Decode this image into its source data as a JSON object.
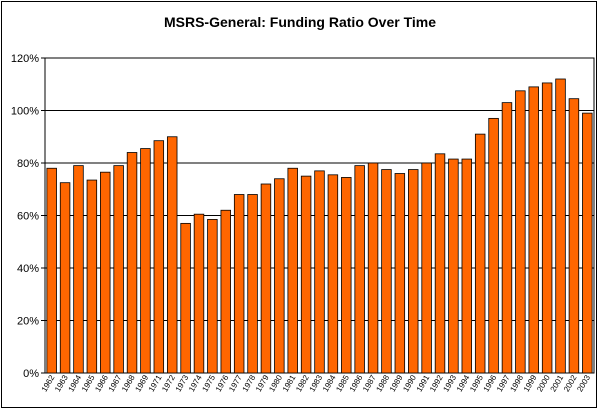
{
  "chart_data": {
    "type": "bar",
    "title": "MSRS-General:  Funding Ratio Over Time",
    "xlabel": "",
    "ylabel": "",
    "ylim": [
      0,
      120
    ],
    "yticks": [
      0,
      20,
      40,
      60,
      80,
      100,
      120
    ],
    "ytick_labels": [
      "0%",
      "20%",
      "40%",
      "60%",
      "80%",
      "100%",
      "120%"
    ],
    "grid": true,
    "legend": "none",
    "bar_color": "#ff6600",
    "bar_edge_color": "#000000",
    "categories": [
      "1962",
      "1963",
      "1964",
      "1965",
      "1966",
      "1967",
      "1968",
      "1969",
      "1971",
      "1972",
      "1973",
      "1974",
      "1975",
      "1976",
      "1977",
      "1978",
      "1979",
      "1980",
      "1981",
      "1982",
      "1983",
      "1984",
      "1985",
      "1986",
      "1987",
      "1988",
      "1989",
      "1990",
      "1991",
      "1992",
      "1993",
      "1994",
      "1995",
      "1996",
      "1997",
      "1998",
      "1999",
      "2000",
      "2001",
      "2002",
      "2003"
    ],
    "values": [
      78,
      72.5,
      79,
      73.5,
      76.5,
      79,
      84,
      85.5,
      88.5,
      90,
      57,
      60.5,
      58.5,
      62,
      68,
      68,
      72,
      74,
      78,
      75,
      77,
      75.5,
      74.5,
      79,
      80,
      77.5,
      76,
      77.5,
      80,
      83.5,
      81.5,
      81.5,
      91,
      97,
      103,
      107.5,
      109,
      110.5,
      112,
      104.5,
      99
    ]
  }
}
